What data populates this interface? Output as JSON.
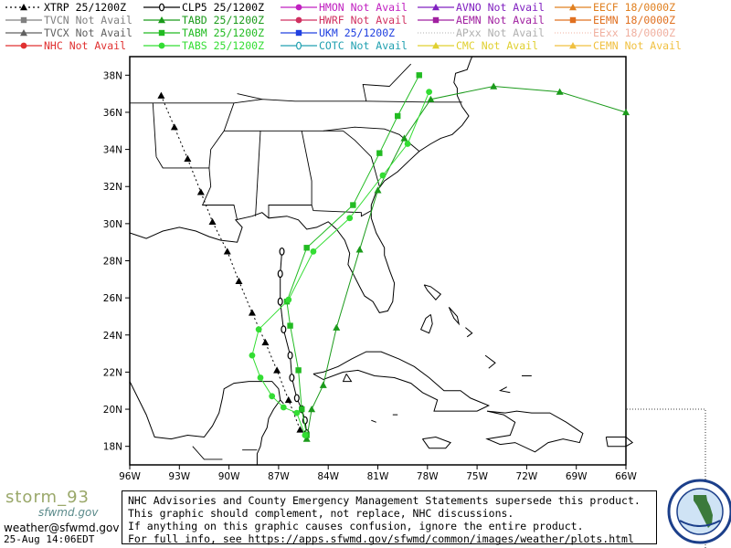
{
  "legend": [
    {
      "id": "xtrp",
      "label": "XTRP 25/1200Z",
      "color": "#000000",
      "marker": "triangle",
      "dash": "2,3"
    },
    {
      "id": "tvcn",
      "label": "TVCN Not Avail",
      "color": "#808080",
      "marker": "square",
      "dash": ""
    },
    {
      "id": "tvcx",
      "label": "TVCX Not Avail",
      "color": "#606060",
      "marker": "triangle",
      "dash": ""
    },
    {
      "id": "nhc",
      "label": "NHC Not Avail",
      "color": "#e03030",
      "marker": "circle",
      "dash": ""
    },
    {
      "id": "clp5",
      "label": "CLP5 25/1200Z",
      "color": "#000000",
      "marker": "zero",
      "dash": ""
    },
    {
      "id": "tabd",
      "label": "TABD 25/1200Z",
      "color": "#1a9a1a",
      "marker": "triangle",
      "dash": ""
    },
    {
      "id": "tabm",
      "label": "TABM 25/1200Z",
      "color": "#22bb22",
      "marker": "square",
      "dash": ""
    },
    {
      "id": "tabs",
      "label": "TABS 25/1200Z",
      "color": "#33dd33",
      "marker": "circle",
      "dash": ""
    },
    {
      "id": "hmon",
      "label": "HMON Not Avail",
      "color": "#c020c0",
      "marker": "circle",
      "dash": ""
    },
    {
      "id": "hwrf",
      "label": "HWRF Not Avail",
      "color": "#d03060",
      "marker": "circle",
      "dash": ""
    },
    {
      "id": "ukm",
      "label": "UKM 25/1200Z",
      "color": "#2040e0",
      "marker": "square",
      "dash": ""
    },
    {
      "id": "cotc",
      "label": "COTC Not Avail",
      "color": "#20a0b0",
      "marker": "zero",
      "dash": ""
    },
    {
      "id": "avno",
      "label": "AVNO Not Avail",
      "color": "#8020c0",
      "marker": "triangle",
      "dash": ""
    },
    {
      "id": "aemn",
      "label": "AEMN Not Avail",
      "color": "#a020a0",
      "marker": "square",
      "dash": ""
    },
    {
      "id": "apxx",
      "label": "APxx Not Avail",
      "color": "#b0b0b0",
      "marker": "none",
      "dash": ""
    },
    {
      "id": "cmc",
      "label": "CMC Not Avail",
      "color": "#e0d030",
      "marker": "triangle",
      "dash": ""
    },
    {
      "id": "eecf",
      "label": "EECF 18/0000Z",
      "color": "#e08020",
      "marker": "triangle",
      "dash": ""
    },
    {
      "id": "eemn",
      "label": "EEMN 18/0000Z",
      "color": "#e07020",
      "marker": "square",
      "dash": ""
    },
    {
      "id": "eexx",
      "label": "EExx 18/0000Z",
      "color": "#f0b0a0",
      "marker": "none",
      "dash": ""
    },
    {
      "id": "cemn",
      "label": "CEMN Not Avail",
      "color": "#f0c040",
      "marker": "triangle",
      "dash": ""
    }
  ],
  "map": {
    "lon_labels": [
      "96W",
      "93W",
      "90W",
      "87W",
      "84W",
      "81W",
      "78W",
      "75W",
      "72W",
      "69W",
      "66W"
    ],
    "lat_labels": [
      "38N",
      "36N",
      "34N",
      "32N",
      "30N",
      "28N",
      "26N",
      "24N",
      "22N",
      "20N",
      "18N"
    ],
    "lon_range": [
      -96,
      -66
    ],
    "lat_range": [
      17,
      39
    ]
  },
  "tracks": [
    {
      "model": "XTRP",
      "color": "#000000",
      "marker": "triangle",
      "dash": "2,3",
      "points": [
        [
          -85.7,
          18.9
        ],
        [
          -86.4,
          20.5
        ],
        [
          -87.1,
          22.1
        ],
        [
          -87.8,
          23.6
        ],
        [
          -88.6,
          25.2
        ],
        [
          -89.4,
          26.9
        ],
        [
          -90.1,
          28.5
        ],
        [
          -91.0,
          30.1
        ],
        [
          -91.7,
          31.7
        ],
        [
          -92.5,
          33.5
        ],
        [
          -93.3,
          35.2
        ],
        [
          -94.1,
          36.9
        ]
      ]
    },
    {
      "model": "CLP5",
      "color": "#000000",
      "marker": "zero",
      "dash": "",
      "points": [
        [
          -85.3,
          18.7
        ],
        [
          -85.4,
          19.4
        ],
        [
          -85.6,
          20.0
        ],
        [
          -85.9,
          20.6
        ],
        [
          -86.2,
          21.7
        ],
        [
          -86.3,
          22.9
        ],
        [
          -86.7,
          24.3
        ],
        [
          -86.9,
          25.8
        ],
        [
          -86.9,
          27.3
        ],
        [
          -86.8,
          28.5
        ]
      ]
    },
    {
      "model": "TABD",
      "color": "#1a9a1a",
      "marker": "triangle",
      "dash": "",
      "points": [
        [
          -85.3,
          18.4
        ],
        [
          -85.0,
          20.0
        ],
        [
          -84.3,
          21.3
        ],
        [
          -83.5,
          24.4
        ],
        [
          -82.1,
          28.6
        ],
        [
          -81.0,
          31.8
        ],
        [
          -79.4,
          34.6
        ],
        [
          -77.8,
          36.7
        ],
        [
          -74.0,
          37.4
        ],
        [
          -70.0,
          37.1
        ],
        [
          -66.0,
          36.0
        ]
      ]
    },
    {
      "model": "TABM",
      "color": "#22bb22",
      "marker": "square",
      "dash": "",
      "points": [
        [
          -85.3,
          18.6
        ],
        [
          -85.6,
          20.0
        ],
        [
          -85.8,
          22.1
        ],
        [
          -86.3,
          24.5
        ],
        [
          -86.5,
          25.8
        ],
        [
          -85.3,
          28.7
        ],
        [
          -82.5,
          31.0
        ],
        [
          -80.9,
          33.8
        ],
        [
          -79.8,
          35.8
        ],
        [
          -78.5,
          38.0
        ]
      ]
    },
    {
      "model": "TABS",
      "color": "#33dd33",
      "marker": "circle",
      "dash": "",
      "points": [
        [
          -85.4,
          18.6
        ],
        [
          -85.9,
          19.8
        ],
        [
          -86.7,
          20.1
        ],
        [
          -87.4,
          20.7
        ],
        [
          -88.1,
          21.7
        ],
        [
          -88.6,
          22.9
        ],
        [
          -88.2,
          24.3
        ],
        [
          -86.4,
          25.9
        ],
        [
          -84.9,
          28.5
        ],
        [
          -82.7,
          30.3
        ],
        [
          -80.7,
          32.6
        ],
        [
          -79.2,
          34.3
        ],
        [
          -77.9,
          37.1
        ]
      ]
    }
  ],
  "notice_lines": [
    "NHC Advisories and County Emergency Management Statements supersede this product.",
    "This graphic should complement, not replace, NHC discussions.",
    "If anything on this graphic causes confusion, ignore the entire product.",
    "For full info, see  https://apps.sfwmd.gov/sfwmd/common/images/weather/plots.html"
  ],
  "branding": {
    "logo_line1": "storm_93",
    "logo_line2": "sfwmd.gov",
    "email": "weather@sfwmd.gov",
    "timestamp": "25-Aug 14:06EDT",
    "seal_text": "SOUTH FLORIDA WATER MANAGEMENT DISTRICT"
  },
  "colors": {
    "coast": "#000000",
    "border": "#000000",
    "frame": "#000000"
  }
}
